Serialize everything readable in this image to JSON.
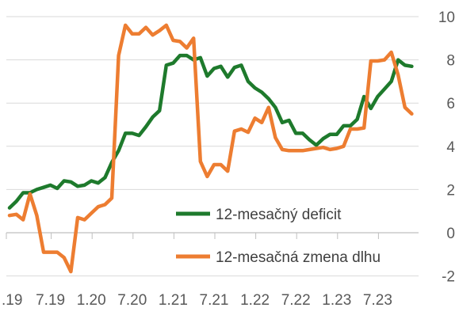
{
  "chart_data": {
    "type": "line",
    "title": "",
    "xlabel": "",
    "ylabel": "",
    "ylim": [
      -2,
      10
    ],
    "yticks": [
      -2,
      0,
      2,
      4,
      6,
      8,
      10
    ],
    "y_axis_side": "right",
    "grid": true,
    "legend_placement": "bottom-right, inside plot",
    "x_tick_labels": [
      ".19",
      "7.19",
      "1.20",
      "7.20",
      "1.21",
      "7.21",
      "1.22",
      "7.22",
      "1.23",
      "7.23"
    ],
    "x_tick_months": [
      0,
      6,
      12,
      18,
      24,
      30,
      36,
      42,
      48,
      54
    ],
    "x_months": [
      0,
      1,
      2,
      3,
      4,
      5,
      6,
      7,
      8,
      9,
      10,
      11,
      12,
      13,
      14,
      15,
      16,
      17,
      18,
      19,
      20,
      21,
      22,
      23,
      24,
      25,
      26,
      27,
      28,
      29,
      30,
      31,
      32,
      33,
      34,
      35,
      36,
      37,
      38,
      39,
      40,
      41,
      42,
      43,
      44,
      45,
      46,
      47,
      48,
      49,
      50,
      51,
      52,
      53,
      54,
      55,
      56,
      57,
      58,
      59
    ],
    "series": [
      {
        "name": "12-mesačný deficit",
        "color": "#1e7a2c",
        "values": [
          1.15,
          1.45,
          1.85,
          1.85,
          2.0,
          2.1,
          2.2,
          2.05,
          2.4,
          2.35,
          2.15,
          2.2,
          2.4,
          2.3,
          2.55,
          3.25,
          3.8,
          4.6,
          4.6,
          4.5,
          4.9,
          5.35,
          5.65,
          7.75,
          7.85,
          8.2,
          8.2,
          8.0,
          8.1,
          7.25,
          7.6,
          7.7,
          7.2,
          7.65,
          7.75,
          7.0,
          6.7,
          6.5,
          6.2,
          5.8,
          5.1,
          5.2,
          4.6,
          4.6,
          4.3,
          4.05,
          4.35,
          4.55,
          4.55,
          4.95,
          4.95,
          5.25,
          6.3,
          5.75,
          6.3,
          6.65,
          7.0,
          8.0,
          7.75,
          7.7
        ]
      },
      {
        "name": "12-mesačná zmena dlhu",
        "color": "#ed7d31",
        "values": [
          0.8,
          0.85,
          0.6,
          1.8,
          0.8,
          -0.9,
          -0.9,
          -0.9,
          -1.15,
          -1.8,
          0.7,
          0.6,
          0.9,
          1.2,
          1.3,
          1.6,
          8.2,
          9.6,
          9.2,
          9.2,
          9.5,
          9.15,
          9.35,
          9.6,
          8.9,
          8.85,
          8.55,
          9.0,
          3.3,
          2.6,
          3.15,
          3.15,
          2.85,
          4.7,
          4.8,
          4.65,
          5.3,
          5.1,
          5.8,
          4.4,
          3.85,
          3.8,
          3.8,
          3.8,
          3.85,
          3.9,
          3.95,
          3.85,
          3.9,
          4.0,
          4.8,
          4.8,
          4.85,
          7.95,
          7.95,
          8.0,
          8.35,
          7.3,
          5.8,
          5.5
        ]
      }
    ]
  }
}
